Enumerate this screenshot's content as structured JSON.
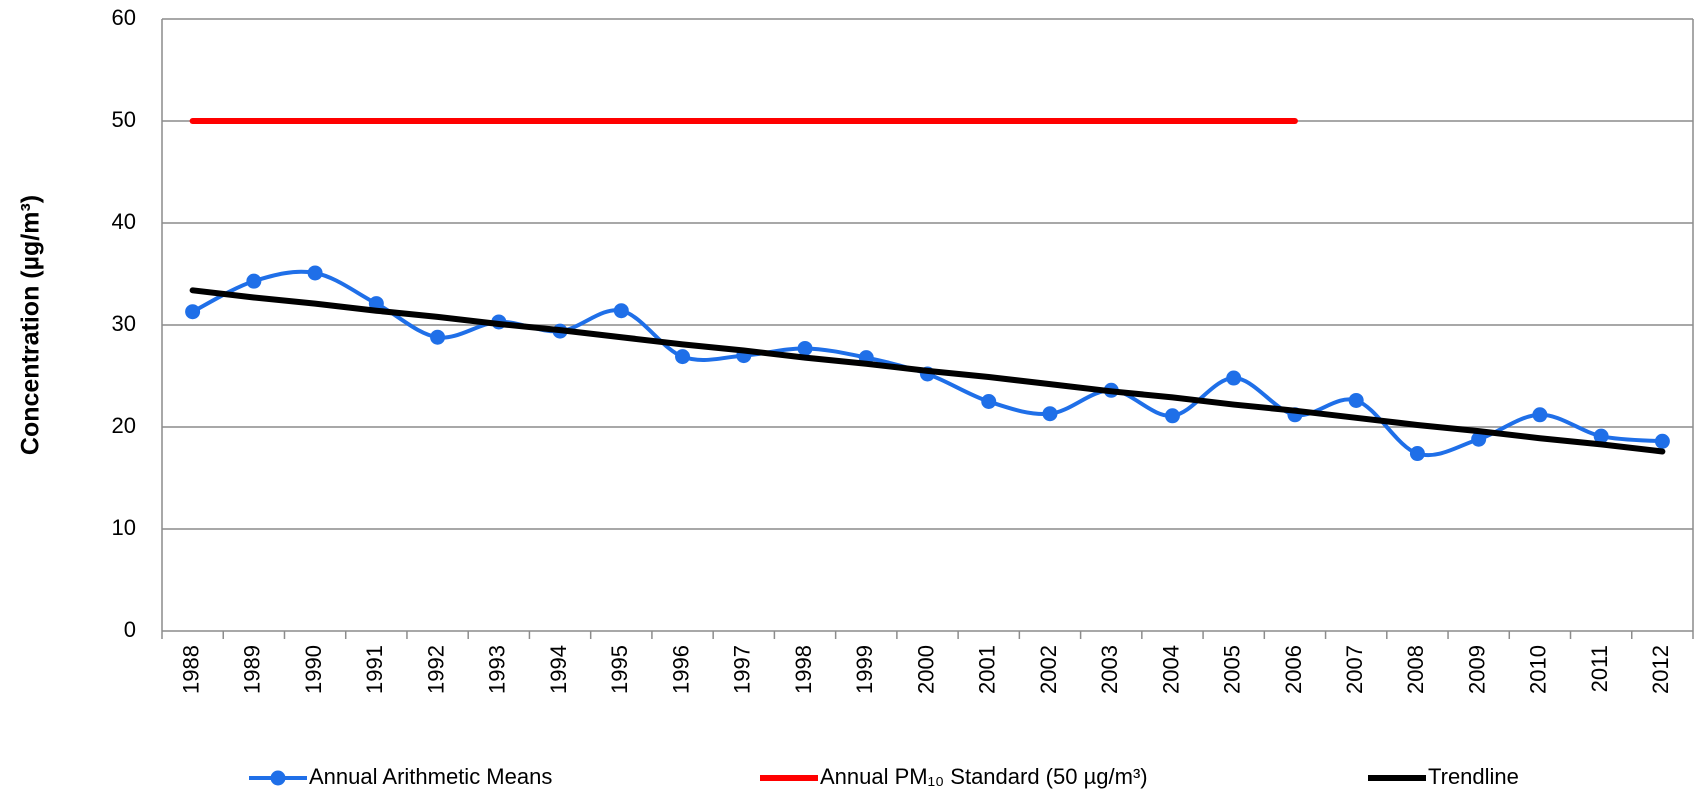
{
  "chart_data": {
    "type": "line",
    "y_label": "Concentration (µg/m³)",
    "categories": [
      "1988",
      "1989",
      "1990",
      "1991",
      "1992",
      "1993",
      "1994",
      "1995",
      "1996",
      "1997",
      "1998",
      "1999",
      "2000",
      "2001",
      "2002",
      "2003",
      "2004",
      "2005",
      "2006",
      "2007",
      "2008",
      "2009",
      "2010",
      "2011",
      "2012"
    ],
    "series": [
      {
        "name": "Annual Arithmetic Means",
        "color": "#1f6fe8",
        "smooth": true,
        "markers": true,
        "values": [
          31.3,
          34.3,
          35.1,
          32.1,
          28.8,
          30.3,
          29.4,
          31.4,
          26.9,
          27.0,
          27.7,
          26.8,
          25.2,
          22.5,
          21.3,
          23.6,
          21.1,
          24.8,
          21.2,
          22.6,
          17.4,
          18.8,
          21.2,
          19.1,
          18.6
        ]
      },
      {
        "name": "Annual PM₁₀ Standard (50 µg/m³)",
        "color": "#ff0000",
        "smooth": false,
        "markers": false,
        "values": [
          50,
          50,
          50,
          50,
          50,
          50,
          50,
          50,
          50,
          50,
          50,
          50,
          50,
          50,
          50,
          50,
          50,
          50,
          50,
          null,
          null,
          null,
          null,
          null,
          null
        ]
      },
      {
        "name": "Trendline",
        "color": "#000000",
        "smooth": false,
        "markers": false,
        "values": [
          33.4,
          32.7,
          32.1,
          31.4,
          30.8,
          30.1,
          29.5,
          28.8,
          28.1,
          27.5,
          26.8,
          26.2,
          25.5,
          24.9,
          24.2,
          23.5,
          22.9,
          22.2,
          21.6,
          20.9,
          20.2,
          19.6,
          18.9,
          18.3,
          17.6
        ]
      }
    ],
    "ylim": [
      0,
      60
    ],
    "yticks": [
      0,
      10,
      20,
      30,
      40,
      50,
      60
    ],
    "grid": true,
    "legend": "bottom"
  }
}
